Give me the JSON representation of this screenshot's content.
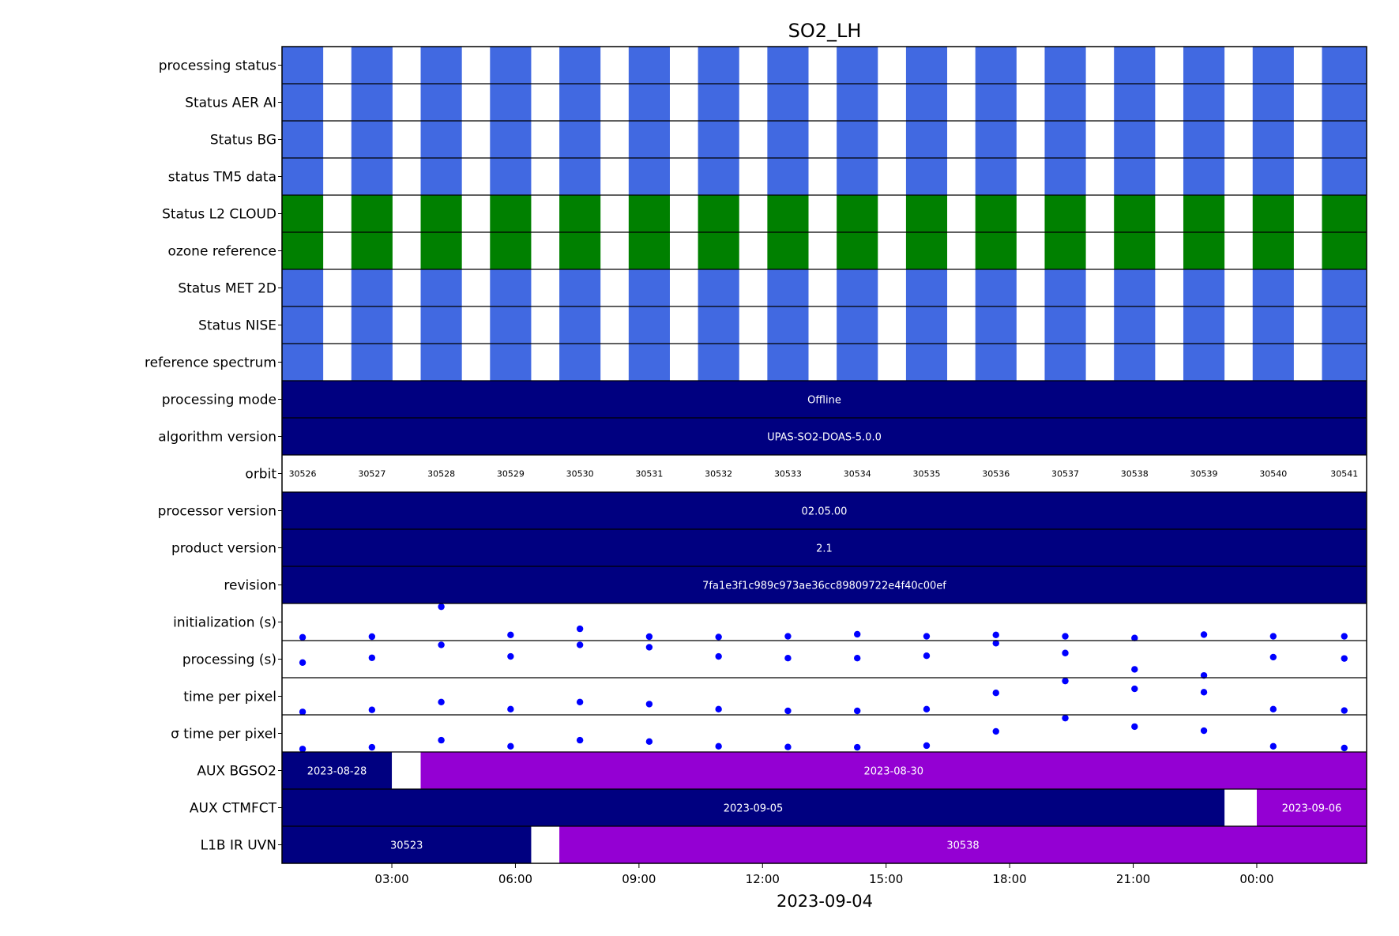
{
  "chart_data": {
    "type": "timeline",
    "title": "SO2_LH",
    "xlabel": "2023-09-04",
    "x_range": [
      "2023-09-04 00:20",
      "2023-09-05 02:40"
    ],
    "x_ticks": [
      {
        "label": "03:00",
        "time": "2023-09-04 03:00"
      },
      {
        "label": "06:00",
        "time": "2023-09-04 06:00"
      },
      {
        "label": "09:00",
        "time": "2023-09-04 09:00"
      },
      {
        "label": "12:00",
        "time": "2023-09-04 12:00"
      },
      {
        "label": "15:00",
        "time": "2023-09-04 15:00"
      },
      {
        "label": "18:00",
        "time": "2023-09-04 18:00"
      },
      {
        "label": "21:00",
        "time": "2023-09-04 21:00"
      },
      {
        "label": "00:00",
        "time": "2023-09-05 00:00"
      }
    ],
    "orbits": [
      {
        "orbit": "30526",
        "start": "2023-09-04 00:20",
        "end": "2023-09-04 01:20"
      },
      {
        "orbit": "30527",
        "start": "2023-09-04 02:01",
        "end": "2023-09-04 03:01"
      },
      {
        "orbit": "30528",
        "start": "2023-09-04 03:42",
        "end": "2023-09-04 04:42"
      },
      {
        "orbit": "30529",
        "start": "2023-09-04 05:23",
        "end": "2023-09-04 06:23"
      },
      {
        "orbit": "30530",
        "start": "2023-09-04 07:04",
        "end": "2023-09-04 08:04"
      },
      {
        "orbit": "30531",
        "start": "2023-09-04 08:45",
        "end": "2023-09-04 09:45"
      },
      {
        "orbit": "30532",
        "start": "2023-09-04 10:26",
        "end": "2023-09-04 11:26"
      },
      {
        "orbit": "30533",
        "start": "2023-09-04 12:07",
        "end": "2023-09-04 13:07"
      },
      {
        "orbit": "30534",
        "start": "2023-09-04 13:48",
        "end": "2023-09-04 14:48"
      },
      {
        "orbit": "30535",
        "start": "2023-09-04 15:29",
        "end": "2023-09-04 16:29"
      },
      {
        "orbit": "30536",
        "start": "2023-09-04 17:10",
        "end": "2023-09-04 18:10"
      },
      {
        "orbit": "30537",
        "start": "2023-09-04 18:51",
        "end": "2023-09-04 19:51"
      },
      {
        "orbit": "30538",
        "start": "2023-09-04 20:32",
        "end": "2023-09-04 21:32"
      },
      {
        "orbit": "30539",
        "start": "2023-09-04 22:13",
        "end": "2023-09-04 23:13"
      },
      {
        "orbit": "30540",
        "start": "2023-09-04 23:54",
        "end": "2023-09-05 00:54"
      },
      {
        "orbit": "30541",
        "start": "2023-09-05 01:35",
        "end": "2023-09-05 02:40"
      }
    ],
    "rows": [
      {
        "label": "processing status",
        "kind": "orbit_bars",
        "color": "#4169e1"
      },
      {
        "label": "Status AER AI",
        "kind": "orbit_bars",
        "color": "#4169e1"
      },
      {
        "label": "Status BG",
        "kind": "orbit_bars",
        "color": "#4169e1"
      },
      {
        "label": "status TM5 data",
        "kind": "orbit_bars",
        "color": "#4169e1"
      },
      {
        "label": "Status L2  CLOUD",
        "kind": "orbit_bars",
        "color": "#008000"
      },
      {
        "label": "ozone reference",
        "kind": "orbit_bars",
        "color": "#008000"
      },
      {
        "label": "Status MET 2D",
        "kind": "orbit_bars",
        "color": "#4169e1"
      },
      {
        "label": "Status NISE",
        "kind": "orbit_bars",
        "color": "#4169e1"
      },
      {
        "label": "reference spectrum",
        "kind": "orbit_bars",
        "color": "#4169e1"
      },
      {
        "label": "processing mode",
        "kind": "spans",
        "spans": [
          {
            "text": "Offline",
            "start": "2023-09-04 00:20",
            "end": "2023-09-05 02:40",
            "color": "#000080"
          }
        ]
      },
      {
        "label": "algorithm version",
        "kind": "spans",
        "spans": [
          {
            "text": "UPAS-SO2-DOAS-5.0.0",
            "start": "2023-09-04 00:20",
            "end": "2023-09-05 02:40",
            "color": "#000080"
          }
        ]
      },
      {
        "label": "orbit",
        "kind": "orbit_labels"
      },
      {
        "label": "processor version",
        "kind": "spans",
        "spans": [
          {
            "text": "02.05.00",
            "start": "2023-09-04 00:20",
            "end": "2023-09-05 02:40",
            "color": "#000080"
          }
        ]
      },
      {
        "label": "product version",
        "kind": "spans",
        "spans": [
          {
            "text": "2.1",
            "start": "2023-09-04 00:20",
            "end": "2023-09-05 02:40",
            "color": "#000080"
          }
        ]
      },
      {
        "label": "revision",
        "kind": "spans",
        "spans": [
          {
            "text": "7fa1e3f1c989c973ae36cc89809722e4f40c00ef",
            "start": "2023-09-04 00:20",
            "end": "2023-09-05 02:40",
            "color": "#000080"
          }
        ]
      },
      {
        "label": "initialization (s)",
        "kind": "dots",
        "color": "#0000ff",
        "values": [
          0.05,
          0.07,
          0.95,
          0.12,
          0.3,
          0.07,
          0.06,
          0.08,
          0.14,
          0.08,
          0.12,
          0.08,
          0.03,
          0.13,
          0.08,
          0.08
        ]
      },
      {
        "label": "processing (s)",
        "kind": "dots",
        "color": "#0000ff",
        "values": [
          0.4,
          0.54,
          0.92,
          0.58,
          0.92,
          0.85,
          0.58,
          0.53,
          0.53,
          0.6,
          0.97,
          0.68,
          0.2,
          0.02,
          0.56,
          0.52
        ]
      },
      {
        "label": "time per pixel",
        "kind": "dots",
        "color": "#0000ff",
        "values": [
          0.04,
          0.1,
          0.33,
          0.12,
          0.33,
          0.27,
          0.12,
          0.07,
          0.07,
          0.12,
          0.6,
          0.95,
          0.72,
          0.62,
          0.12,
          0.08
        ]
      },
      {
        "label": "σ time per pixel",
        "kind": "dots",
        "color": "#0000ff",
        "values": [
          0.04,
          0.09,
          0.3,
          0.12,
          0.3,
          0.26,
          0.12,
          0.1,
          0.09,
          0.14,
          0.56,
          0.95,
          0.7,
          0.58,
          0.12,
          0.07
        ]
      },
      {
        "label": "AUX BGSO2",
        "kind": "spans",
        "spans": [
          {
            "text": "2023-08-28",
            "start": "2023-09-04 00:20",
            "end": "2023-09-04 03:00",
            "color": "#000080"
          },
          {
            "text": "2023-08-30",
            "start": "2023-09-04 03:42",
            "end": "2023-09-05 02:40",
            "color": "#9400d3"
          }
        ]
      },
      {
        "label": "AUX CTMFCT",
        "kind": "spans",
        "spans": [
          {
            "text": "2023-09-05",
            "start": "2023-09-04 00:20",
            "end": "2023-09-04 23:13",
            "color": "#000080"
          },
          {
            "text": "2023-09-06",
            "start": "2023-09-05 00:00",
            "end": "2023-09-05 02:40",
            "color": "#9400d3"
          }
        ]
      },
      {
        "label": "L1B IR UVN",
        "kind": "spans",
        "spans": [
          {
            "text": "30523",
            "start": "2023-09-04 00:20",
            "end": "2023-09-04 06:23",
            "color": "#000080"
          },
          {
            "text": "30538",
            "start": "2023-09-04 07:04",
            "end": "2023-09-05 02:40",
            "color": "#9400d3"
          }
        ]
      }
    ]
  }
}
